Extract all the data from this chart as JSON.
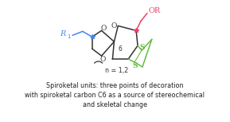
{
  "title_line1": "Spiroketal units: three points of decoration",
  "title_line2": "with spiroketal carbon C6 as a source of stereochemical",
  "title_line3": "and skeletal change",
  "bg_color": "#ffffff",
  "text_color": "#222222",
  "blue_color": "#4488ee",
  "red_color": "#e8406a",
  "green_color": "#66bb44",
  "black_color": "#333333",
  "title_fontsize": 5.8
}
